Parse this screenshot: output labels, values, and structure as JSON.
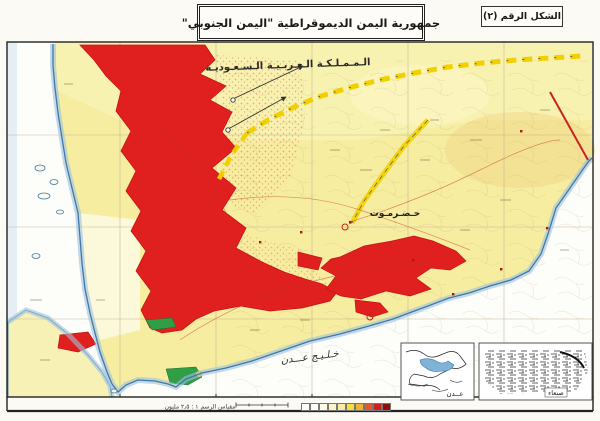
{
  "figure_box": {
    "label": "الشكل الرقم (٢)"
  },
  "title_box": {
    "title": "جمهورية اليمن الديموقراطية \"اليمن الجنوبي\""
  },
  "map": {
    "labels": {
      "saudi_arabia": "الـمـمـلـكـة الـعـربـيـة الـسـعـوديـة",
      "hadhramaut": "حـضـرمـوت",
      "gulf_of_aden": "خـلـيـج  عـــدن"
    },
    "insets": {
      "aden_label": "عــدن",
      "sanaa_label": "صنعاء"
    },
    "scale_label": "مقياس الرسم ١ : ٢٫٥ مليون",
    "legend_swatches": [
      "#ffffff",
      "#fffef4",
      "#fdfbe4",
      "#fcf5c6",
      "#f9ec9e",
      "#f6df3a",
      "#efb32f",
      "#e4562b",
      "#cf1f1f",
      "#8e0d0d"
    ],
    "colors": {
      "land_yellow": "#f6eda0",
      "dense_red": "#e01f1f",
      "coast_blue": "#4a86b8",
      "oasis_green": "#2f9e44",
      "border_dash_yellow": "#f2d000"
    }
  }
}
